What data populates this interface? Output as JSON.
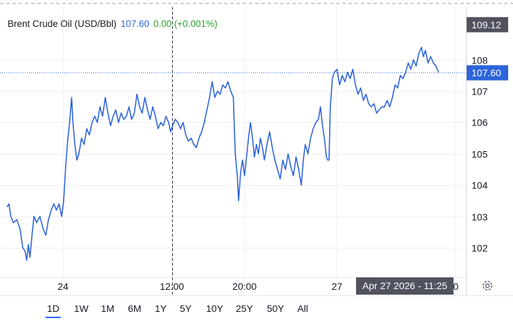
{
  "legend": {
    "instrument": "Brent Crude Oil (USD/Bbl)",
    "price": "107.60",
    "change": "0.00 (+0.001%)"
  },
  "crosshair_label": "Apr 27 2026 - 11:25",
  "ranges": [
    "1D",
    "1W",
    "1M",
    "6M",
    "1Y",
    "5Y",
    "10Y",
    "25Y",
    "50Y",
    "All"
  ],
  "active_range": "1D",
  "colors": {
    "line": "#2d64d9",
    "positive": "#2ca02c",
    "price_label_bg": "#2d64d9",
    "high_label_bg": "#50535e"
  },
  "chart_data": {
    "type": "line",
    "ylim": [
      101.1,
      109.6
    ],
    "y_ticks": [
      102,
      103,
      104,
      105,
      106,
      107,
      108
    ],
    "x_tick_labels": [
      {
        "label": "24",
        "x": 0.17
      },
      {
        "label": "12:00",
        "x": 0.5
      },
      {
        "label": "20:00",
        "x": 0.72
      },
      {
        "label": "27",
        "x": 1.0
      },
      {
        "label": "0",
        "x": 1.36
      }
    ],
    "xlim": [
      0,
      1.37
    ],
    "last_price": 107.6,
    "high_marker": 109.12,
    "crosshair_x": 0.5,
    "grid": true,
    "series": [
      {
        "values": [
          [
            0.0,
            103.3
          ],
          [
            0.006,
            103.4
          ],
          [
            0.012,
            103.0
          ],
          [
            0.02,
            102.8
          ],
          [
            0.03,
            102.9
          ],
          [
            0.04,
            102.6
          ],
          [
            0.048,
            102.0
          ],
          [
            0.055,
            101.9
          ],
          [
            0.06,
            101.6
          ],
          [
            0.065,
            102.1
          ],
          [
            0.07,
            101.7
          ],
          [
            0.076,
            102.4
          ],
          [
            0.082,
            103.0
          ],
          [
            0.09,
            102.8
          ],
          [
            0.1,
            103.0
          ],
          [
            0.11,
            102.6
          ],
          [
            0.118,
            102.4
          ],
          [
            0.126,
            102.9
          ],
          [
            0.134,
            103.2
          ],
          [
            0.142,
            103.4
          ],
          [
            0.15,
            103.2
          ],
          [
            0.158,
            103.4
          ],
          [
            0.166,
            103.0
          ],
          [
            0.172,
            103.5
          ],
          [
            0.178,
            104.6
          ],
          [
            0.184,
            105.4
          ],
          [
            0.19,
            106.0
          ],
          [
            0.196,
            106.8
          ],
          [
            0.2,
            106.0
          ],
          [
            0.206,
            105.3
          ],
          [
            0.212,
            104.8
          ],
          [
            0.218,
            105.0
          ],
          [
            0.226,
            105.5
          ],
          [
            0.234,
            105.3
          ],
          [
            0.242,
            105.8
          ],
          [
            0.25,
            105.6
          ],
          [
            0.258,
            106.0
          ],
          [
            0.266,
            106.2
          ],
          [
            0.274,
            106.0
          ],
          [
            0.282,
            106.5
          ],
          [
            0.29,
            106.2
          ],
          [
            0.298,
            106.8
          ],
          [
            0.306,
            106.3
          ],
          [
            0.314,
            105.9
          ],
          [
            0.322,
            106.2
          ],
          [
            0.33,
            106.4
          ],
          [
            0.338,
            106.0
          ],
          [
            0.346,
            106.3
          ],
          [
            0.354,
            106.1
          ],
          [
            0.362,
            106.2
          ],
          [
            0.37,
            106.5
          ],
          [
            0.378,
            106.1
          ],
          [
            0.386,
            106.3
          ],
          [
            0.394,
            106.9
          ],
          [
            0.402,
            106.5
          ],
          [
            0.41,
            106.3
          ],
          [
            0.418,
            106.8
          ],
          [
            0.426,
            106.4
          ],
          [
            0.434,
            106.1
          ],
          [
            0.442,
            106.5
          ],
          [
            0.45,
            106.2
          ],
          [
            0.458,
            105.8
          ],
          [
            0.466,
            106.0
          ],
          [
            0.474,
            105.9
          ],
          [
            0.482,
            106.2
          ],
          [
            0.49,
            106.0
          ],
          [
            0.496,
            105.7
          ],
          [
            0.502,
            105.9
          ],
          [
            0.51,
            106.1
          ],
          [
            0.518,
            106.0
          ],
          [
            0.526,
            105.8
          ],
          [
            0.534,
            106.0
          ],
          [
            0.542,
            105.6
          ],
          [
            0.55,
            105.4
          ],
          [
            0.558,
            105.5
          ],
          [
            0.566,
            105.3
          ],
          [
            0.574,
            105.2
          ],
          [
            0.582,
            105.5
          ],
          [
            0.59,
            105.7
          ],
          [
            0.598,
            106.0
          ],
          [
            0.606,
            106.4
          ],
          [
            0.614,
            106.8
          ],
          [
            0.622,
            107.3
          ],
          [
            0.63,
            106.8
          ],
          [
            0.638,
            107.0
          ],
          [
            0.646,
            106.9
          ],
          [
            0.654,
            107.2
          ],
          [
            0.662,
            107.1
          ],
          [
            0.67,
            107.3
          ],
          [
            0.678,
            107.0
          ],
          [
            0.686,
            106.8
          ],
          [
            0.692,
            105.0
          ],
          [
            0.698,
            104.3
          ],
          [
            0.702,
            103.5
          ],
          [
            0.708,
            104.4
          ],
          [
            0.714,
            104.8
          ],
          [
            0.72,
            104.3
          ],
          [
            0.726,
            104.9
          ],
          [
            0.732,
            105.5
          ],
          [
            0.738,
            106.0
          ],
          [
            0.744,
            105.5
          ],
          [
            0.75,
            104.9
          ],
          [
            0.756,
            105.3
          ],
          [
            0.762,
            105.0
          ],
          [
            0.768,
            105.5
          ],
          [
            0.774,
            105.2
          ],
          [
            0.78,
            104.8
          ],
          [
            0.788,
            105.3
          ],
          [
            0.796,
            105.7
          ],
          [
            0.804,
            105.2
          ],
          [
            0.812,
            104.8
          ],
          [
            0.82,
            104.5
          ],
          [
            0.828,
            104.2
          ],
          [
            0.836,
            104.8
          ],
          [
            0.844,
            104.5
          ],
          [
            0.852,
            105.0
          ],
          [
            0.86,
            104.6
          ],
          [
            0.868,
            104.3
          ],
          [
            0.876,
            104.9
          ],
          [
            0.884,
            104.5
          ],
          [
            0.892,
            104.0
          ],
          [
            0.898,
            104.8
          ],
          [
            0.904,
            105.3
          ],
          [
            0.912,
            105.0
          ],
          [
            0.92,
            105.5
          ],
          [
            0.928,
            105.8
          ],
          [
            0.936,
            106.0
          ],
          [
            0.944,
            106.1
          ],
          [
            0.95,
            106.5
          ],
          [
            0.956,
            105.9
          ],
          [
            0.962,
            105.5
          ],
          [
            0.968,
            104.9
          ],
          [
            0.972,
            104.8
          ],
          [
            0.976,
            104.8
          ],
          [
            0.98,
            106.5
          ],
          [
            0.986,
            107.4
          ],
          [
            0.992,
            107.6
          ],
          [
            1.0,
            107.7
          ],
          [
            1.008,
            107.2
          ],
          [
            1.016,
            107.5
          ],
          [
            1.024,
            107.3
          ],
          [
            1.032,
            107.6
          ],
          [
            1.04,
            107.4
          ],
          [
            1.048,
            107.7
          ],
          [
            1.056,
            107.2
          ],
          [
            1.064,
            106.9
          ],
          [
            1.072,
            107.1
          ],
          [
            1.08,
            106.7
          ],
          [
            1.088,
            106.9
          ],
          [
            1.096,
            106.6
          ],
          [
            1.104,
            106.5
          ],
          [
            1.112,
            106.6
          ],
          [
            1.12,
            106.3
          ],
          [
            1.128,
            106.4
          ],
          [
            1.136,
            106.5
          ],
          [
            1.144,
            106.5
          ],
          [
            1.152,
            106.7
          ],
          [
            1.16,
            106.5
          ],
          [
            1.168,
            106.8
          ],
          [
            1.176,
            107.2
          ],
          [
            1.184,
            107.1
          ],
          [
            1.192,
            107.5
          ],
          [
            1.2,
            107.4
          ],
          [
            1.208,
            107.6
          ],
          [
            1.216,
            107.9
          ],
          [
            1.224,
            107.7
          ],
          [
            1.232,
            108.0
          ],
          [
            1.24,
            107.8
          ],
          [
            1.248,
            108.2
          ],
          [
            1.256,
            108.4
          ],
          [
            1.262,
            108.1
          ],
          [
            1.268,
            108.3
          ],
          [
            1.276,
            107.9
          ],
          [
            1.284,
            108.1
          ],
          [
            1.292,
            107.9
          ],
          [
            1.3,
            107.8
          ],
          [
            1.308,
            107.6
          ]
        ]
      }
    ]
  }
}
